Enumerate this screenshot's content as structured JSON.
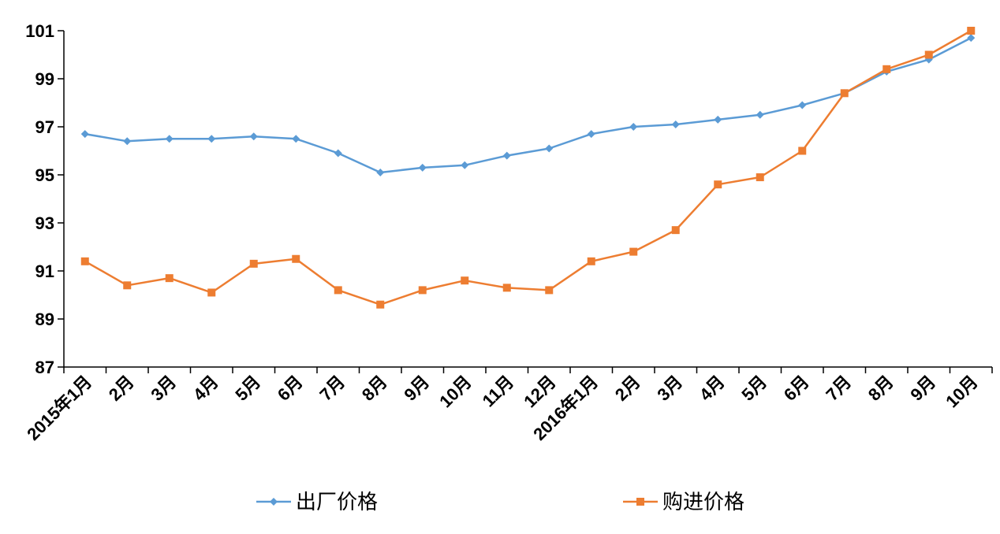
{
  "chart_data": {
    "type": "line",
    "title": "",
    "xlabel": "",
    "ylabel": "",
    "categories": [
      "2015年1月",
      "2月",
      "3月",
      "4月",
      "5月",
      "6月",
      "7月",
      "8月",
      "9月",
      "10月",
      "11月",
      "12月",
      "2016年1月",
      "2月",
      "3月",
      "4月",
      "5月",
      "6月",
      "7月",
      "8月",
      "9月",
      "10月"
    ],
    "ylim": [
      87,
      101
    ],
    "yticks": [
      "87",
      "89",
      "91",
      "93",
      "95",
      "97",
      "99",
      "101"
    ],
    "grid": false,
    "legend_position": "bottom",
    "series": [
      {
        "name": "出厂价格",
        "color": "#5B9BD5",
        "marker": "diamond",
        "values": [
          96.7,
          96.4,
          96.5,
          96.5,
          96.6,
          96.5,
          95.9,
          95.1,
          95.3,
          95.4,
          95.8,
          96.1,
          96.7,
          97.0,
          97.1,
          97.3,
          97.5,
          97.9,
          98.4,
          99.3,
          99.8,
          100.7
        ]
      },
      {
        "name": "购进价格",
        "color": "#ED7D31",
        "marker": "square",
        "values": [
          91.4,
          90.4,
          90.7,
          90.1,
          91.3,
          91.5,
          90.2,
          89.6,
          90.2,
          90.6,
          90.3,
          90.2,
          91.4,
          91.8,
          92.7,
          94.6,
          94.9,
          96.0,
          98.4,
          99.4,
          100.0,
          101.0
        ]
      }
    ]
  }
}
